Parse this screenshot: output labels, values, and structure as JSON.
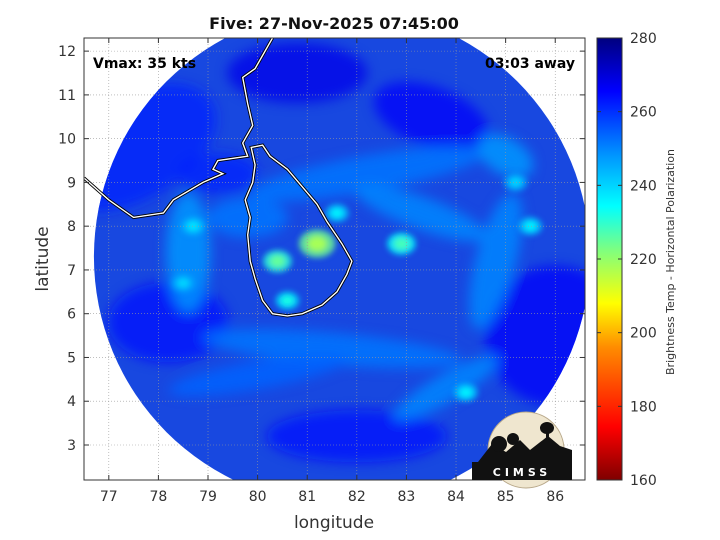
{
  "chart_data": {
    "type": "heatmap",
    "title": "Five: 27-Nov-2025 07:45:00",
    "xlabel": "longitude",
    "ylabel": "latitude",
    "xlim": [
      76.5,
      86.6
    ],
    "ylim": [
      2.2,
      12.3
    ],
    "xticks": [
      "77",
      "78",
      "79",
      "80",
      "81",
      "82",
      "83",
      "84",
      "85",
      "86"
    ],
    "yticks": [
      "3",
      "4",
      "5",
      "6",
      "7",
      "8",
      "9",
      "10",
      "11",
      "12"
    ],
    "grid": true,
    "annotations": {
      "vmax": "Vmax: 35 kts",
      "offset": "03:03 away"
    },
    "colorbar": {
      "label": "Brightness Temp - Horizontal Polarization",
      "ticks": [
        "160",
        "180",
        "200",
        "220",
        "240",
        "260",
        "280"
      ],
      "range": [
        160,
        280
      ],
      "colormap": "jet"
    },
    "swath": {
      "center": [
        81.7,
        7.3
      ],
      "radius_deg": 5.0
    },
    "warm_features": [
      {
        "lon": 81.2,
        "lat": 7.6,
        "tb": 218
      },
      {
        "lon": 80.4,
        "lat": 7.2,
        "tb": 225
      },
      {
        "lon": 82.9,
        "lat": 7.6,
        "tb": 228
      },
      {
        "lon": 81.6,
        "lat": 8.3,
        "tb": 236
      },
      {
        "lon": 80.6,
        "lat": 6.3,
        "tb": 232
      },
      {
        "lon": 78.7,
        "lat": 8.0,
        "tb": 238
      },
      {
        "lon": 78.5,
        "lat": 6.7,
        "tb": 240
      },
      {
        "lon": 84.2,
        "lat": 4.2,
        "tb": 236
      },
      {
        "lon": 85.2,
        "lat": 9.0,
        "tb": 240
      },
      {
        "lon": 85.5,
        "lat": 8.0,
        "tb": 236
      }
    ],
    "logo_text": "CIMSS"
  }
}
